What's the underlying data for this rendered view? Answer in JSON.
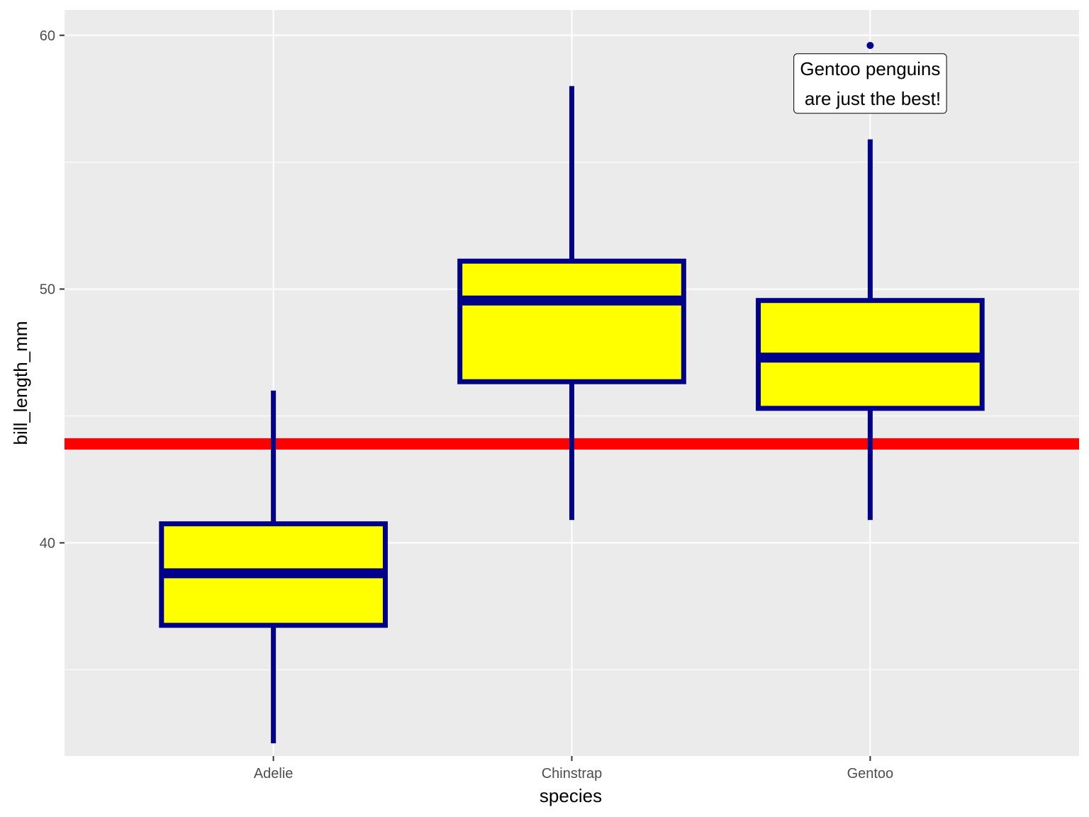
{
  "chart_data": {
    "type": "boxplot",
    "xlabel": "species",
    "ylabel": "bill_length_mm",
    "categories": [
      "Adelie",
      "Chinstrap",
      "Gentoo"
    ],
    "boxes": [
      {
        "category": "Adelie",
        "whisker_low": 32.1,
        "q1": 36.75,
        "median": 38.8,
        "q3": 40.75,
        "whisker_high": 46.0,
        "outliers": []
      },
      {
        "category": "Chinstrap",
        "whisker_low": 40.9,
        "q1": 46.35,
        "median": 49.55,
        "q3": 51.1,
        "whisker_high": 58.0,
        "outliers": []
      },
      {
        "category": "Gentoo",
        "whisker_low": 40.9,
        "q1": 45.3,
        "median": 47.3,
        "q3": 49.55,
        "whisker_high": 55.9,
        "outliers": [
          59.6
        ]
      }
    ],
    "hline": {
      "y": 43.9,
      "color": "#ff0000"
    },
    "ylim": [
      31.6,
      61.0
    ],
    "yticks": [
      40,
      50,
      60
    ],
    "ytick_labels": [
      "40",
      "50",
      "60"
    ],
    "annotation": {
      "category": "Gentoo",
      "y": 58.1,
      "lines": [
        "Gentoo penguins",
        " are just the best!"
      ]
    },
    "colors": {
      "box_fill": "#ffff00",
      "box_outline": "#00008b",
      "panel_bg": "#ebebeb",
      "grid": "#ffffff"
    },
    "grid": true,
    "legend": "none"
  }
}
